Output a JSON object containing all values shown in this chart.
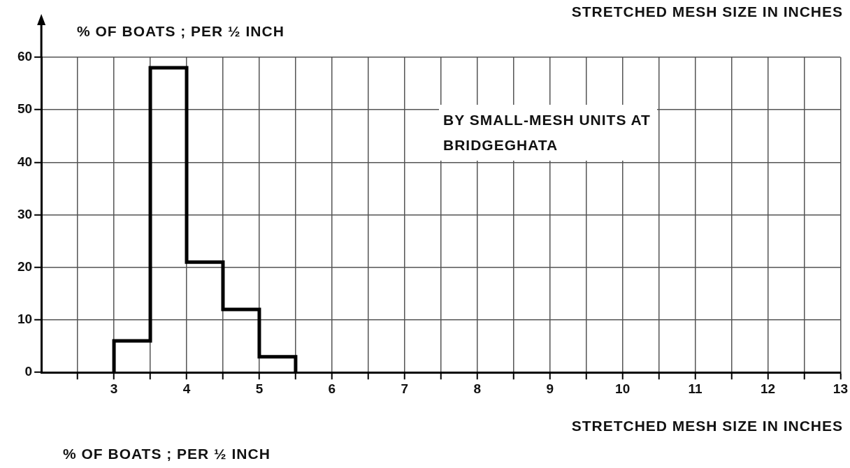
{
  "chart_data": {
    "type": "histogram",
    "ylabel": "% OF BOATS ; PER ½ INCH",
    "xlabel": "STRETCHED MESH SIZE IN INCHES",
    "annotations": [
      "STRETCHED MESH SIZE IN INCHES",
      "BY SMALL-MESH UNITS AT BRIDGEGHATA",
      "% OF BOATS ; PER ½ INCH"
    ],
    "bins": [
      3,
      3.5,
      4,
      4.5,
      5,
      5.5
    ],
    "values": [
      6,
      58,
      21,
      12,
      3
    ],
    "color": "#000000",
    "xlim": [
      2,
      13
    ],
    "xticks": [
      {
        "value": 2.5,
        "label": null
      },
      3,
      {
        "value": 3.5,
        "label": null
      },
      4,
      {
        "value": 4.5,
        "label": null
      },
      5,
      {
        "value": 5.5,
        "label": null
      },
      6,
      {
        "value": 6.5,
        "label": null
      },
      7,
      {
        "value": 7.5,
        "label": null
      },
      8,
      {
        "value": 8.5,
        "label": null
      },
      9,
      {
        "value": 9.5,
        "label": null
      },
      10,
      {
        "value": 10.5,
        "label": null
      },
      11,
      {
        "value": 11.5,
        "label": null
      },
      12,
      {
        "value": 12.5,
        "label": null
      },
      13
    ],
    "ylim": [
      0,
      60
    ],
    "yticks": [
      0,
      10,
      20,
      30,
      40,
      50,
      60
    ],
    "grid": true
  }
}
